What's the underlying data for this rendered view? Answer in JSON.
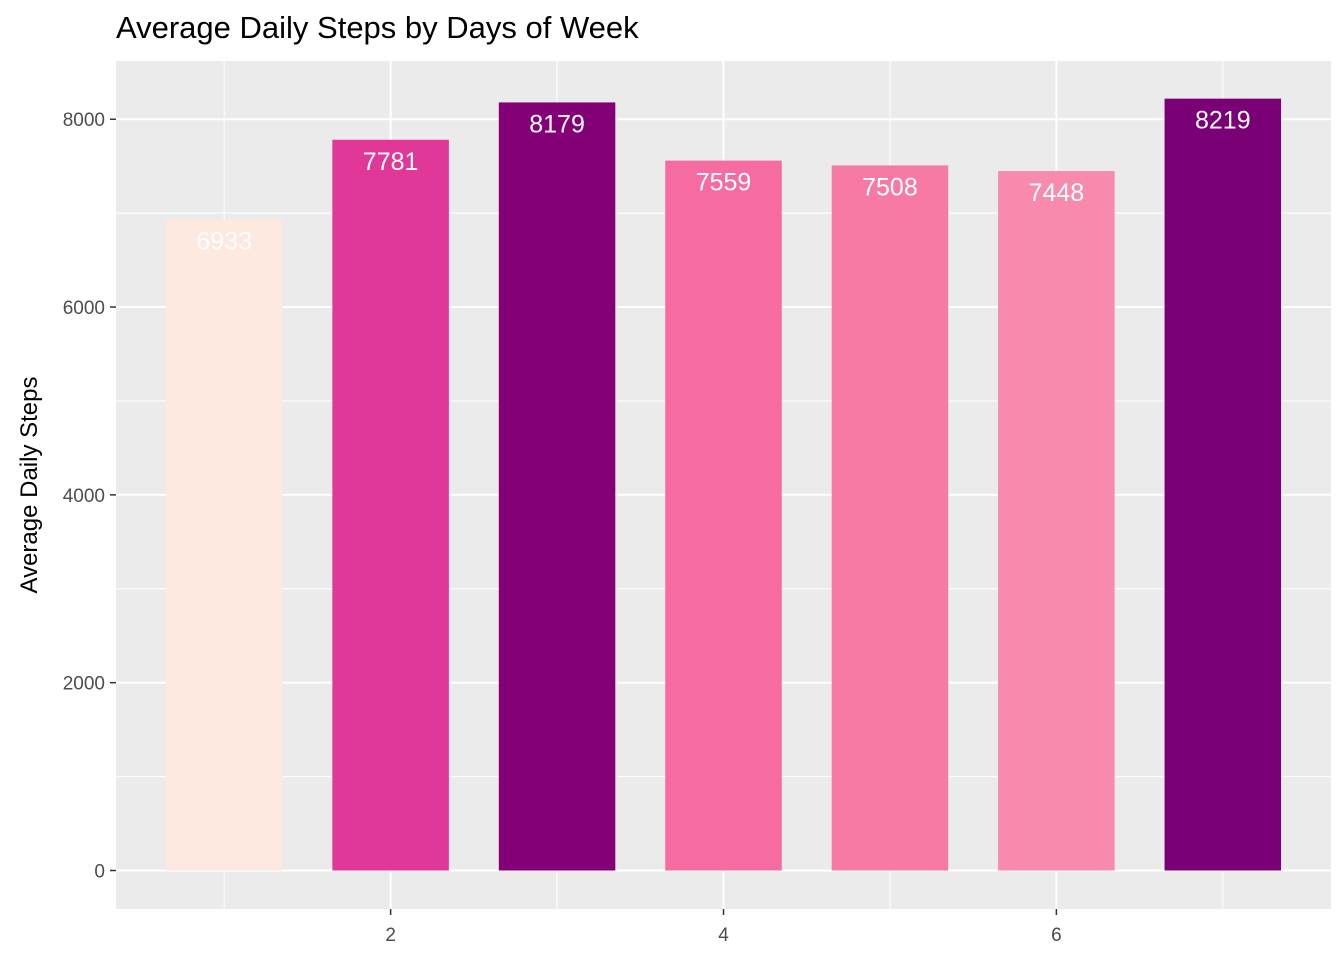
{
  "chart_data": {
    "type": "bar",
    "title": "Average Daily Steps by Days of Week",
    "xlabel": "",
    "ylabel": "Average Daily Steps",
    "x": [
      1,
      2,
      3,
      4,
      5,
      6,
      7
    ],
    "values": [
      6933,
      7781,
      8179,
      7559,
      7508,
      7448,
      8219
    ],
    "data_labels": [
      "6933",
      "7781",
      "8179",
      "7559",
      "7508",
      "7448",
      "8219"
    ],
    "bar_colors": [
      "#fde9e0",
      "#e03898",
      "#840076",
      "#f56ba2",
      "#f77aa5",
      "#f88aae",
      "#7a0076"
    ],
    "label_color": "#ffffff",
    "xticks": [
      2,
      4,
      6
    ],
    "xtick_labels": [
      "2",
      "4",
      "6"
    ],
    "yticks": [
      0,
      2000,
      4000,
      6000,
      8000
    ],
    "ytick_labels": [
      "0",
      "2000",
      "4000",
      "6000",
      "8000"
    ],
    "xlim": [
      0.35,
      7.65
    ],
    "ylim": [
      -410,
      8620
    ],
    "grid": true,
    "panel_background": "#ebebeb",
    "grid_color": "#ffffff",
    "legend": "none"
  }
}
